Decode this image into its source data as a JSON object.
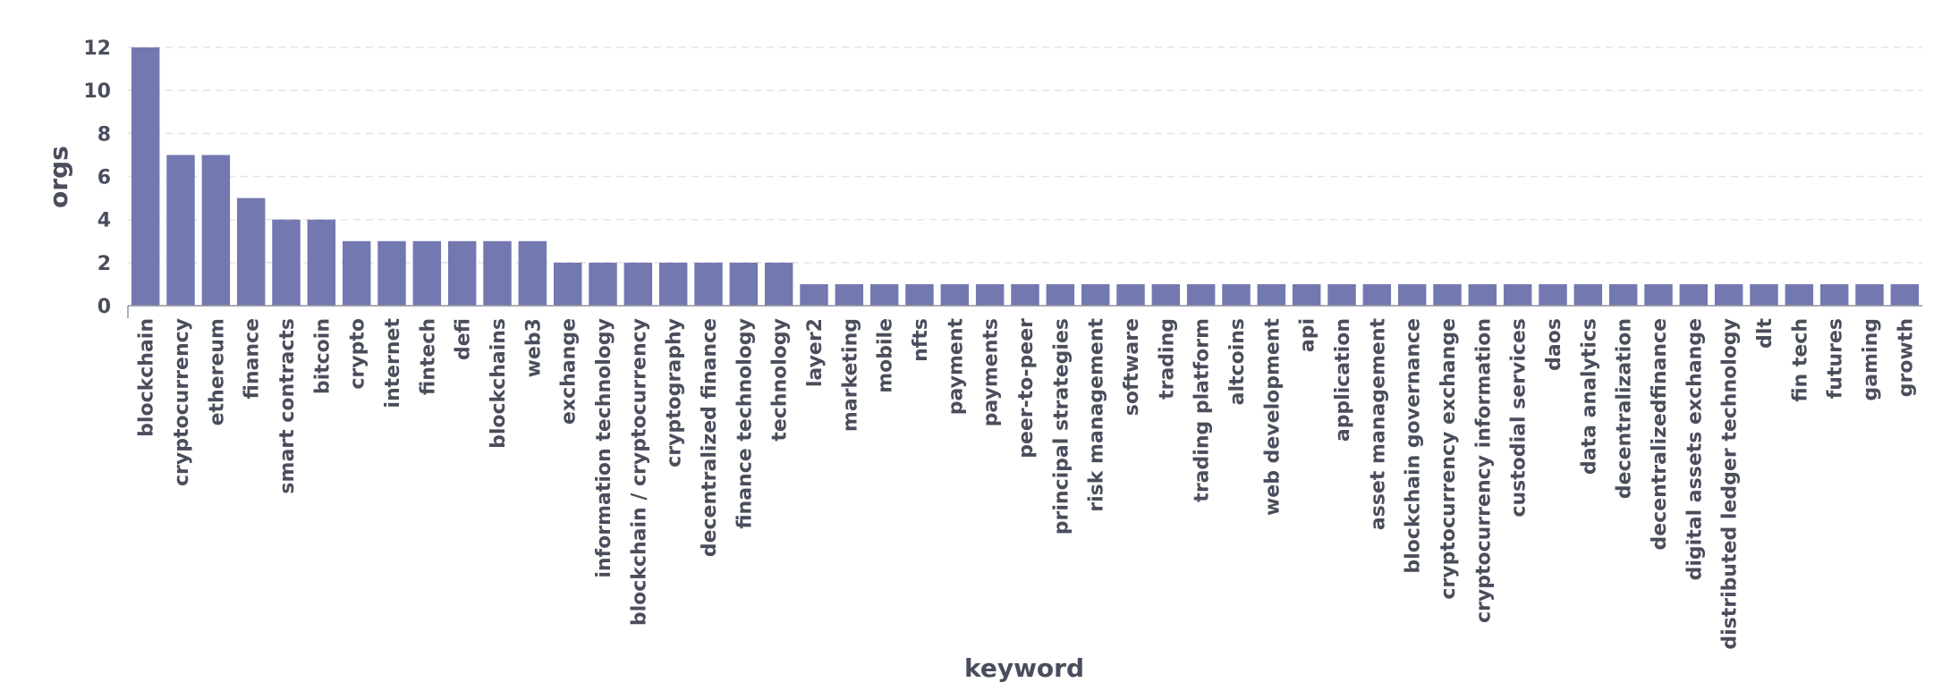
{
  "chart_data": {
    "type": "bar",
    "xlabel": "keyword",
    "ylabel": "orgs",
    "ylim": [
      0,
      12
    ],
    "yticks": [
      0,
      2,
      4,
      6,
      8,
      10,
      12
    ],
    "grid": true,
    "bar_color": "#7478b0",
    "categories": [
      "blockchain",
      "cryptocurrency",
      "ethereum",
      "finance",
      "smart contracts",
      "bitcoin",
      "crypto",
      "internet",
      "fintech",
      "defi",
      "blockchains",
      "web3",
      "exchange",
      "information technology",
      "blockchain / cryptocurrency",
      "cryptography",
      "decentralized finance",
      "finance technology",
      "technology",
      "layer2",
      "marketing",
      "mobile",
      "nfts",
      "payment",
      "payments",
      "peer-to-peer",
      "principal strategies",
      "risk management",
      "software",
      "trading",
      "trading platform",
      "altcoins",
      "web development",
      "api",
      "application",
      "asset management",
      "blockchain governance",
      "cryptocurrency exchange",
      "cryptocurrency information",
      "custodial services",
      "daos",
      "data analytics",
      "decentralization",
      "decentralizedfinance",
      "digital assets exchange",
      "distributed ledger technology",
      "dlt",
      "fin tech",
      "futures",
      "gaming",
      "growth"
    ],
    "values": [
      12,
      7,
      7,
      5,
      4,
      4,
      3,
      3,
      3,
      3,
      3,
      3,
      2,
      2,
      2,
      2,
      2,
      2,
      2,
      1,
      1,
      1,
      1,
      1,
      1,
      1,
      1,
      1,
      1,
      1,
      1,
      1,
      1,
      1,
      1,
      1,
      1,
      1,
      1,
      1,
      1,
      1,
      1,
      1,
      1,
      1,
      1,
      1,
      1,
      1,
      1
    ]
  }
}
